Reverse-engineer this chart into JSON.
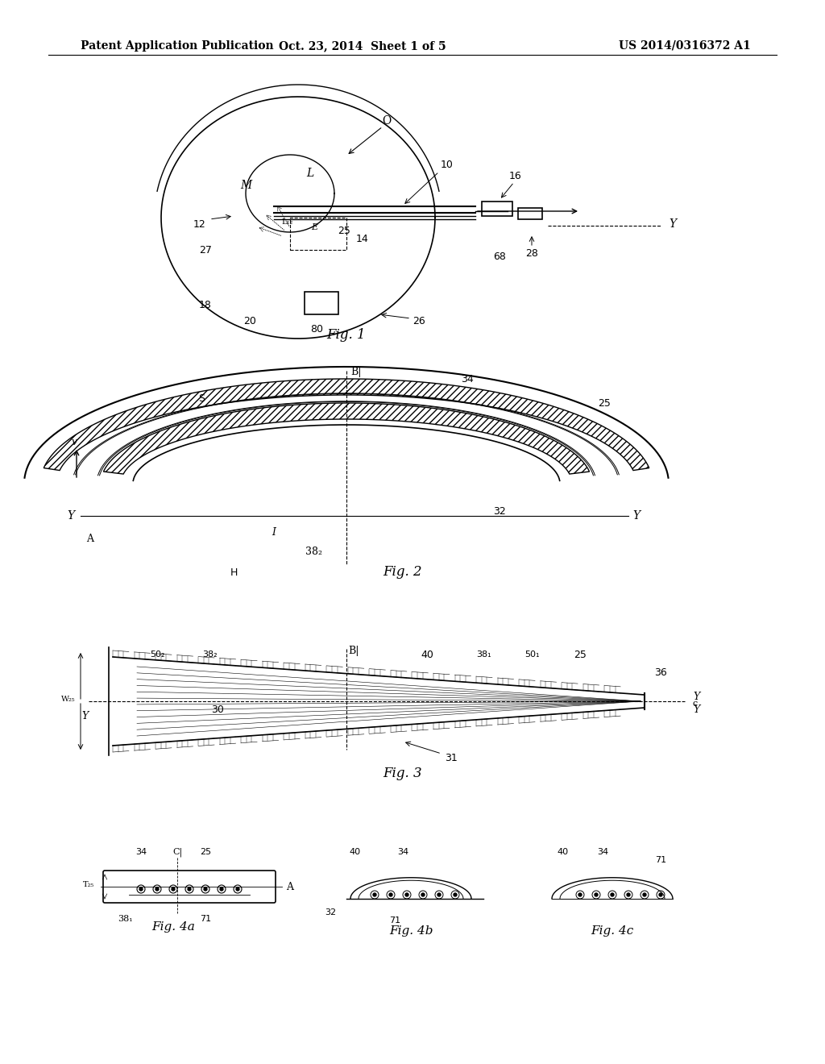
{
  "bg_color": "#ffffff",
  "text_color": "#000000",
  "header_left": "Patent Application Publication",
  "header_mid": "Oct. 23, 2014  Sheet 1 of 5",
  "header_right": "US 2014/0316372 A1",
  "fig1_label": "Fig. 1",
  "fig2_label": "Fig. 2",
  "fig3_label": "Fig. 3",
  "fig4a_label": "Fig. 4a",
  "fig4b_label": "Fig. 4b",
  "fig4c_label": "Fig. 4c"
}
